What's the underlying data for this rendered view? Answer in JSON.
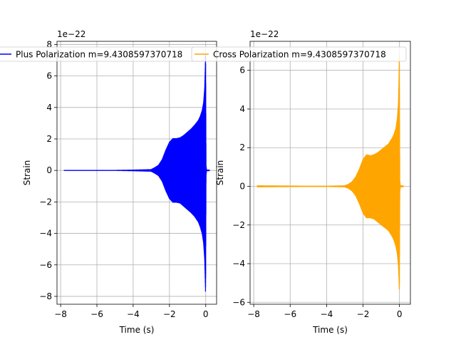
{
  "chart_data": [
    {
      "type": "line",
      "title": "",
      "xlabel": "Time (s)",
      "ylabel": "Strain",
      "offset_text": "1e−22",
      "grid": true,
      "legend": "top-left, overflowing panel",
      "color": "#0000ff",
      "xlim": [
        -8.2,
        0.6
      ],
      "ylim": [
        -8.5,
        8.2
      ],
      "xticks": [
        -8,
        -6,
        -4,
        -2,
        0
      ],
      "xtick_labels": [
        "−8",
        "−6",
        "−4",
        "−2",
        "0"
      ],
      "yticks": [
        -8,
        -6,
        -4,
        -2,
        0,
        2,
        4,
        6,
        8
      ],
      "ytick_labels": [
        "−8",
        "−6",
        "−4",
        "−2",
        "0",
        "2",
        "4",
        "6",
        "8"
      ],
      "series": [
        {
          "name": "Plus Polarization m=9.4308597370718",
          "envelope": {
            "t": [
              -7.8,
              -5,
              -4,
              -3,
              -2.8,
              -2.6,
              -2.4,
              -2.2,
              -2.0,
              -1.8,
              -1.6,
              -1.4,
              -1.2,
              -1.0,
              -0.8,
              -0.6,
              -0.4,
              -0.3,
              -0.2,
              -0.12,
              -0.06,
              -0.03,
              -0.01,
              0.0,
              0.02,
              0.05,
              0.2
            ],
            "upper": [
              0.03,
              0.03,
              0.05,
              0.08,
              0.2,
              0.35,
              0.7,
              1.3,
              1.8,
              2.05,
              2.05,
              2.1,
              2.25,
              2.45,
              2.65,
              2.9,
              3.2,
              3.45,
              3.8,
              4.3,
              5.2,
              6.4,
              7.4,
              6.5,
              0.3,
              0.05,
              0.05
            ],
            "lower": [
              -0.03,
              -0.03,
              -0.05,
              -0.08,
              -0.2,
              -0.35,
              -0.7,
              -1.3,
              -1.8,
              -2.05,
              -2.05,
              -2.1,
              -2.3,
              -2.5,
              -2.7,
              -2.95,
              -3.3,
              -3.6,
              -4.0,
              -4.6,
              -5.6,
              -6.9,
              -7.8,
              -6.8,
              -0.3,
              -0.05,
              -0.05
            ]
          }
        }
      ]
    },
    {
      "type": "line",
      "title": "",
      "xlabel": "Time (s)",
      "ylabel": "Strain",
      "offset_text": "1e−22",
      "grid": true,
      "legend": "top-left, overflowing panel",
      "color": "#ffa500",
      "xlim": [
        -8.2,
        0.6
      ],
      "ylim": [
        -6.1,
        7.5
      ],
      "xticks": [
        -8,
        -6,
        -4,
        -2,
        0
      ],
      "xtick_labels": [
        "−8",
        "−6",
        "−4",
        "−2",
        "0"
      ],
      "yticks": [
        -6,
        -4,
        -2,
        0,
        2,
        4,
        6
      ],
      "ytick_labels": [
        "−6",
        "−4",
        "−2",
        "0",
        "2",
        "4",
        "6"
      ],
      "series": [
        {
          "name": "Cross Polarization m=9.4308597370718",
          "envelope": {
            "t": [
              -7.8,
              -5,
              -4,
              -3,
              -2.8,
              -2.6,
              -2.4,
              -2.2,
              -2.0,
              -1.8,
              -1.6,
              -1.4,
              -1.2,
              -1.0,
              -0.8,
              -0.6,
              -0.4,
              -0.3,
              -0.2,
              -0.12,
              -0.06,
              -0.03,
              -0.01,
              0.0,
              0.02,
              0.05,
              0.2
            ],
            "upper": [
              0.05,
              0.03,
              0.03,
              0.05,
              0.12,
              0.25,
              0.5,
              0.9,
              1.4,
              1.65,
              1.6,
              1.65,
              1.75,
              1.9,
              2.05,
              2.2,
              2.5,
              2.7,
              3.0,
              3.5,
              4.3,
              5.5,
              6.9,
              6.0,
              0.3,
              0.05,
              0.05
            ],
            "lower": [
              -0.05,
              -0.03,
              -0.03,
              -0.05,
              -0.12,
              -0.25,
              -0.5,
              -0.9,
              -1.4,
              -1.65,
              -1.65,
              -1.7,
              -1.85,
              -2.0,
              -2.15,
              -2.3,
              -2.6,
              -2.8,
              -3.1,
              -3.5,
              -4.1,
              -4.8,
              -5.4,
              -5.0,
              -0.3,
              -0.05,
              -0.05
            ]
          }
        }
      ]
    }
  ]
}
